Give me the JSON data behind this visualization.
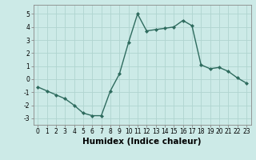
{
  "x": [
    0,
    1,
    2,
    3,
    4,
    5,
    6,
    7,
    8,
    9,
    10,
    11,
    12,
    13,
    14,
    15,
    16,
    17,
    18,
    19,
    20,
    21,
    22,
    23
  ],
  "y": [
    -0.6,
    -0.9,
    -1.2,
    -1.5,
    -2.0,
    -2.6,
    -2.8,
    -2.8,
    -0.9,
    0.4,
    2.8,
    5.0,
    3.7,
    3.8,
    3.9,
    4.0,
    4.5,
    4.1,
    1.1,
    0.8,
    0.9,
    0.6,
    0.1,
    -0.3
  ],
  "line_color": "#2e6b5e",
  "marker": "D",
  "marker_size": 2.0,
  "xlabel": "Humidex (Indice chaleur)",
  "xlim": [
    -0.5,
    23.5
  ],
  "ylim": [
    -3.5,
    5.7
  ],
  "yticks": [
    -3,
    -2,
    -1,
    0,
    1,
    2,
    3,
    4,
    5
  ],
  "xticks": [
    0,
    1,
    2,
    3,
    4,
    5,
    6,
    7,
    8,
    9,
    10,
    11,
    12,
    13,
    14,
    15,
    16,
    17,
    18,
    19,
    20,
    21,
    22,
    23
  ],
  "xtick_labels": [
    "0",
    "1",
    "2",
    "3",
    "4",
    "5",
    "6",
    "7",
    "8",
    "9",
    "10",
    "11",
    "12",
    "13",
    "14",
    "15",
    "16",
    "17",
    "18",
    "19",
    "20",
    "21",
    "22",
    "23"
  ],
  "bg_color": "#cceae7",
  "grid_color": "#b0d4d0",
  "tick_fontsize": 5.5,
  "xlabel_fontsize": 7.5,
  "linewidth": 1.0
}
